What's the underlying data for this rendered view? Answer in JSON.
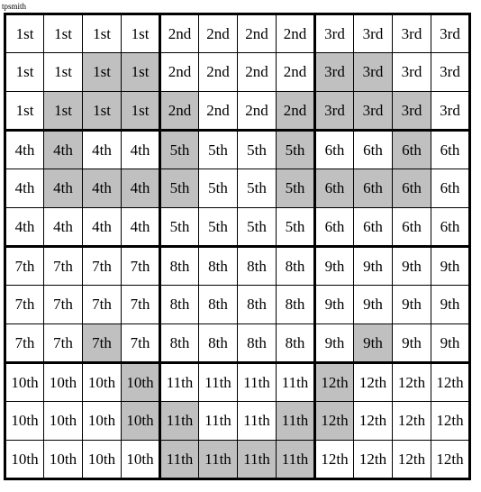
{
  "credit": "tpsmith",
  "block_labels": [
    "1st",
    "2nd",
    "3rd",
    "4th",
    "5th",
    "6th",
    "7th",
    "8th",
    "9th",
    "10th",
    "11th",
    "12th"
  ],
  "grid": {
    "rows": 12,
    "cols": 12,
    "block_rows": 3,
    "block_cols": 4,
    "cell_bg_normal": "#ffffff",
    "cell_bg_shaded": "#c0c0c0",
    "cell_border_thin": "1px solid #000000",
    "cell_border_thick": "3px solid #000000",
    "text_color": "#000000"
  },
  "shaded": [
    [
      1,
      2
    ],
    [
      1,
      3
    ],
    [
      1,
      8
    ],
    [
      1,
      9
    ],
    [
      2,
      1
    ],
    [
      2,
      2
    ],
    [
      2,
      3
    ],
    [
      2,
      4
    ],
    [
      2,
      7
    ],
    [
      2,
      8
    ],
    [
      2,
      9
    ],
    [
      2,
      10
    ],
    [
      3,
      1
    ],
    [
      3,
      4
    ],
    [
      3,
      7
    ],
    [
      3,
      10
    ],
    [
      4,
      1
    ],
    [
      4,
      2
    ],
    [
      4,
      3
    ],
    [
      4,
      4
    ],
    [
      4,
      7
    ],
    [
      4,
      8
    ],
    [
      4,
      9
    ],
    [
      4,
      10
    ],
    [
      8,
      2
    ],
    [
      8,
      9
    ],
    [
      9,
      3
    ],
    [
      9,
      8
    ],
    [
      10,
      3
    ],
    [
      10,
      4
    ],
    [
      10,
      7
    ],
    [
      10,
      8
    ],
    [
      11,
      4
    ],
    [
      11,
      5
    ],
    [
      11,
      6
    ],
    [
      11,
      7
    ]
  ]
}
